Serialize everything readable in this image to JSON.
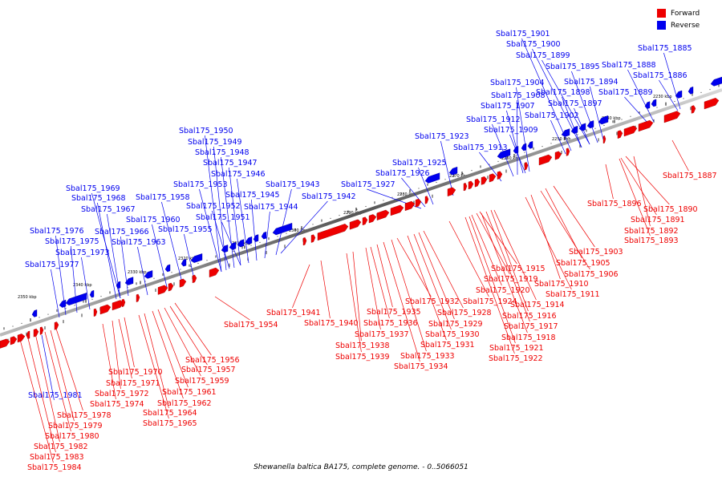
{
  "legend": {
    "forward_label": "Forward",
    "forward_color": "#ee0000",
    "reverse_label": "Reverse",
    "reverse_color": "#0000ee"
  },
  "caption": "Shewanella baltica BA175, complete genome. - 0..5066051",
  "scale_ticks": [
    "2230 kbp",
    "2240 kbp",
    "2250 kbp",
    "2260 kbp",
    "2270 kbp",
    "2280 kbp",
    "2290 kbp",
    "2300 kbp",
    "2310 kbp",
    "2320 kbp",
    "2330 kbp",
    "2340 kbp",
    "2350 kbp"
  ],
  "reverse_genes": [
    "Sbal175_1885",
    "Sbal175_1886",
    "Sbal175_1888",
    "Sbal175_1889",
    "Sbal175_1894",
    "Sbal175_1895",
    "Sbal175_1897",
    "Sbal175_1898",
    "Sbal175_1899",
    "Sbal175_1900",
    "Sbal175_1901",
    "Sbal175_1902",
    "Sbal175_1904",
    "Sbal175_1907",
    "Sbal175_1908",
    "Sbal175_1909",
    "Sbal175_1912",
    "Sbal175_1913",
    "Sbal175_1923",
    "Sbal175_1925",
    "Sbal175_1926",
    "Sbal175_1927",
    "Sbal175_1942",
    "Sbal175_1943",
    "Sbal175_1944",
    "Sbal175_1945",
    "Sbal175_1946",
    "Sbal175_1947",
    "Sbal175_1948",
    "Sbal175_1949",
    "Sbal175_1950",
    "Sbal175_1951",
    "Sbal175_1952",
    "Sbal175_1953",
    "Sbal175_1955",
    "Sbal175_1958",
    "Sbal175_1960",
    "Sbal175_1963",
    "Sbal175_1966",
    "Sbal175_1967",
    "Sbal175_1968",
    "Sbal175_1969",
    "Sbal175_1973",
    "Sbal175_1975",
    "Sbal175_1976",
    "Sbal175_1977",
    "Sbal175_1981"
  ],
  "forward_genes": [
    "Sbal175_1887",
    "Sbal175_1890",
    "Sbal175_1891",
    "Sbal175_1892",
    "Sbal175_1893",
    "Sbal175_1896",
    "Sbal175_1903",
    "Sbal175_1905",
    "Sbal175_1906",
    "Sbal175_1910",
    "Sbal175_1911",
    "Sbal175_1914",
    "Sbal175_1915",
    "Sbal175_1916",
    "Sbal175_1917",
    "Sbal175_1918",
    "Sbal175_1919",
    "Sbal175_1920",
    "Sbal175_1921",
    "Sbal175_1922",
    "Sbal175_1924",
    "Sbal175_1928",
    "Sbal175_1929",
    "Sbal175_1930",
    "Sbal175_1931",
    "Sbal175_1932",
    "Sbal175_1933",
    "Sbal175_1934",
    "Sbal175_1935",
    "Sbal175_1936",
    "Sbal175_1937",
    "Sbal175_1938",
    "Sbal175_1939",
    "Sbal175_1940",
    "Sbal175_1941",
    "Sbal175_1954",
    "Sbal175_1956",
    "Sbal175_1957",
    "Sbal175_1959",
    "Sbal175_1961",
    "Sbal175_1962",
    "Sbal175_1964",
    "Sbal175_1965",
    "Sbal175_1970",
    "Sbal175_1971",
    "Sbal175_1972",
    "Sbal175_1974",
    "Sbal175_1978",
    "Sbal175_1979",
    "Sbal175_1980",
    "Sbal175_1982",
    "Sbal175_1983",
    "Sbal175_1984"
  ]
}
